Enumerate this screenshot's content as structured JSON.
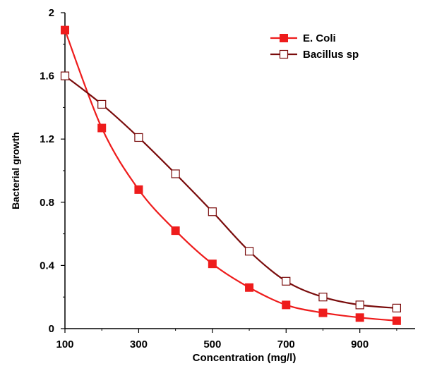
{
  "chart_data": {
    "type": "line",
    "title": "",
    "xlabel": "Concentration (mg/l)",
    "ylabel": "Bacterial growth",
    "x": [
      100,
      200,
      300,
      400,
      500,
      600,
      700,
      800,
      900,
      1000
    ],
    "x_ticks": [
      100,
      300,
      500,
      700,
      900
    ],
    "y_ticks": [
      0,
      0.4,
      0.8,
      1.2,
      1.6,
      2
    ],
    "xlim": [
      100,
      1050
    ],
    "ylim": [
      0,
      2
    ],
    "grid": false,
    "legend_position": "top-right",
    "series": [
      {
        "name": "E. Coli",
        "color": "#ee1c1c",
        "marker": "filled-square",
        "values": [
          1.89,
          1.27,
          0.88,
          0.62,
          0.41,
          0.26,
          0.15,
          0.1,
          0.07,
          0.05
        ]
      },
      {
        "name": "Bacillus sp",
        "color": "#7a0c0c",
        "marker": "open-square",
        "values": [
          1.6,
          1.42,
          1.21,
          0.98,
          0.74,
          0.49,
          0.3,
          0.2,
          0.15,
          0.13
        ]
      }
    ]
  }
}
